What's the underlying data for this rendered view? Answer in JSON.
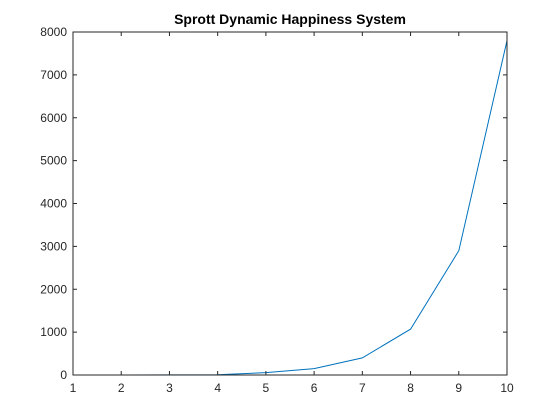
{
  "chart_data": {
    "type": "line",
    "title": "Sprott Dynamic Happiness System",
    "xlabel": "",
    "ylabel": "",
    "xlim": [
      1,
      10
    ],
    "ylim": [
      0,
      8000
    ],
    "x_ticks": [
      "1",
      "2",
      "3",
      "4",
      "5",
      "6",
      "7",
      "8",
      "9",
      "10"
    ],
    "y_ticks": [
      "0",
      "1000",
      "2000",
      "3000",
      "4000",
      "5000",
      "6000",
      "7000",
      "8000"
    ],
    "grid": false,
    "series": [
      {
        "color": "#0072BD",
        "x": [
          1,
          2,
          3,
          4,
          5,
          6,
          7,
          8,
          9,
          10
        ],
        "y": [
          0,
          1,
          3,
          8,
          55,
          150,
          400,
          1070,
          2900,
          7800
        ]
      }
    ]
  }
}
